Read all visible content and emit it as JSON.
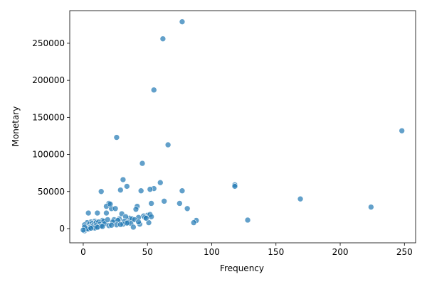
{
  "chart_data": {
    "type": "scatter",
    "x_label": "Frequency",
    "y_label": "Monetary",
    "color": "#1f77b4",
    "x": [
      77,
      62,
      55,
      248,
      26,
      66,
      46,
      31,
      60,
      118,
      118,
      34,
      55,
      52,
      45,
      77,
      14,
      29,
      169,
      224,
      128,
      88,
      86,
      81,
      75,
      63,
      53,
      42,
      41,
      22,
      25,
      20,
      18,
      21,
      4,
      11,
      18,
      30,
      50,
      52,
      53,
      47,
      43,
      36,
      33,
      28,
      24,
      15,
      9,
      6,
      3,
      1,
      2,
      5,
      7,
      8,
      10,
      12,
      13,
      16,
      17,
      19,
      23,
      27,
      32,
      35,
      38,
      40,
      44,
      48,
      51,
      2,
      4,
      6,
      8,
      10,
      12,
      14,
      3,
      5,
      7,
      9,
      11,
      1,
      2,
      3,
      4,
      6,
      20,
      26,
      31,
      37,
      39,
      43,
      49,
      1,
      0,
      15,
      22,
      29,
      34
    ],
    "values": [
      279000,
      256000,
      187000,
      132000,
      123000,
      113000,
      88000,
      66000,
      62000,
      59000,
      57000,
      57000,
      54000,
      53000,
      51000,
      51000,
      50000,
      52000,
      40000,
      29000,
      11500,
      11000,
      8000,
      27000,
      34000,
      37000,
      34000,
      30000,
      26000,
      27000,
      27000,
      34000,
      30000,
      33000,
      21000,
      21000,
      21000,
      20000,
      18000,
      19000,
      16000,
      17000,
      15000,
      14000,
      16000,
      13000,
      12000,
      11000,
      10000,
      9000,
      8000,
      5000,
      3000,
      6000,
      7000,
      5000,
      8000,
      9000,
      6000,
      10000,
      7000,
      12000,
      9000,
      11000,
      10000,
      8000,
      13000,
      12000,
      6000,
      15000,
      8000,
      1000,
      2000,
      3000,
      1500,
      4000,
      2500,
      3500,
      500,
      1200,
      2200,
      800,
      1800,
      -3000,
      -1000,
      0,
      -500,
      500,
      4000,
      5000,
      6000,
      7000,
      2000,
      9000,
      14000,
      2000,
      -2000,
      3000,
      4500,
      5500,
      7500
    ],
    "xlim": [
      -10.5,
      258.7
    ],
    "ylim": [
      -19200,
      294000
    ],
    "xticks": [
      0,
      50,
      100,
      150,
      200,
      250
    ],
    "yticks": [
      0,
      50000,
      100000,
      150000,
      200000,
      250000
    ]
  }
}
